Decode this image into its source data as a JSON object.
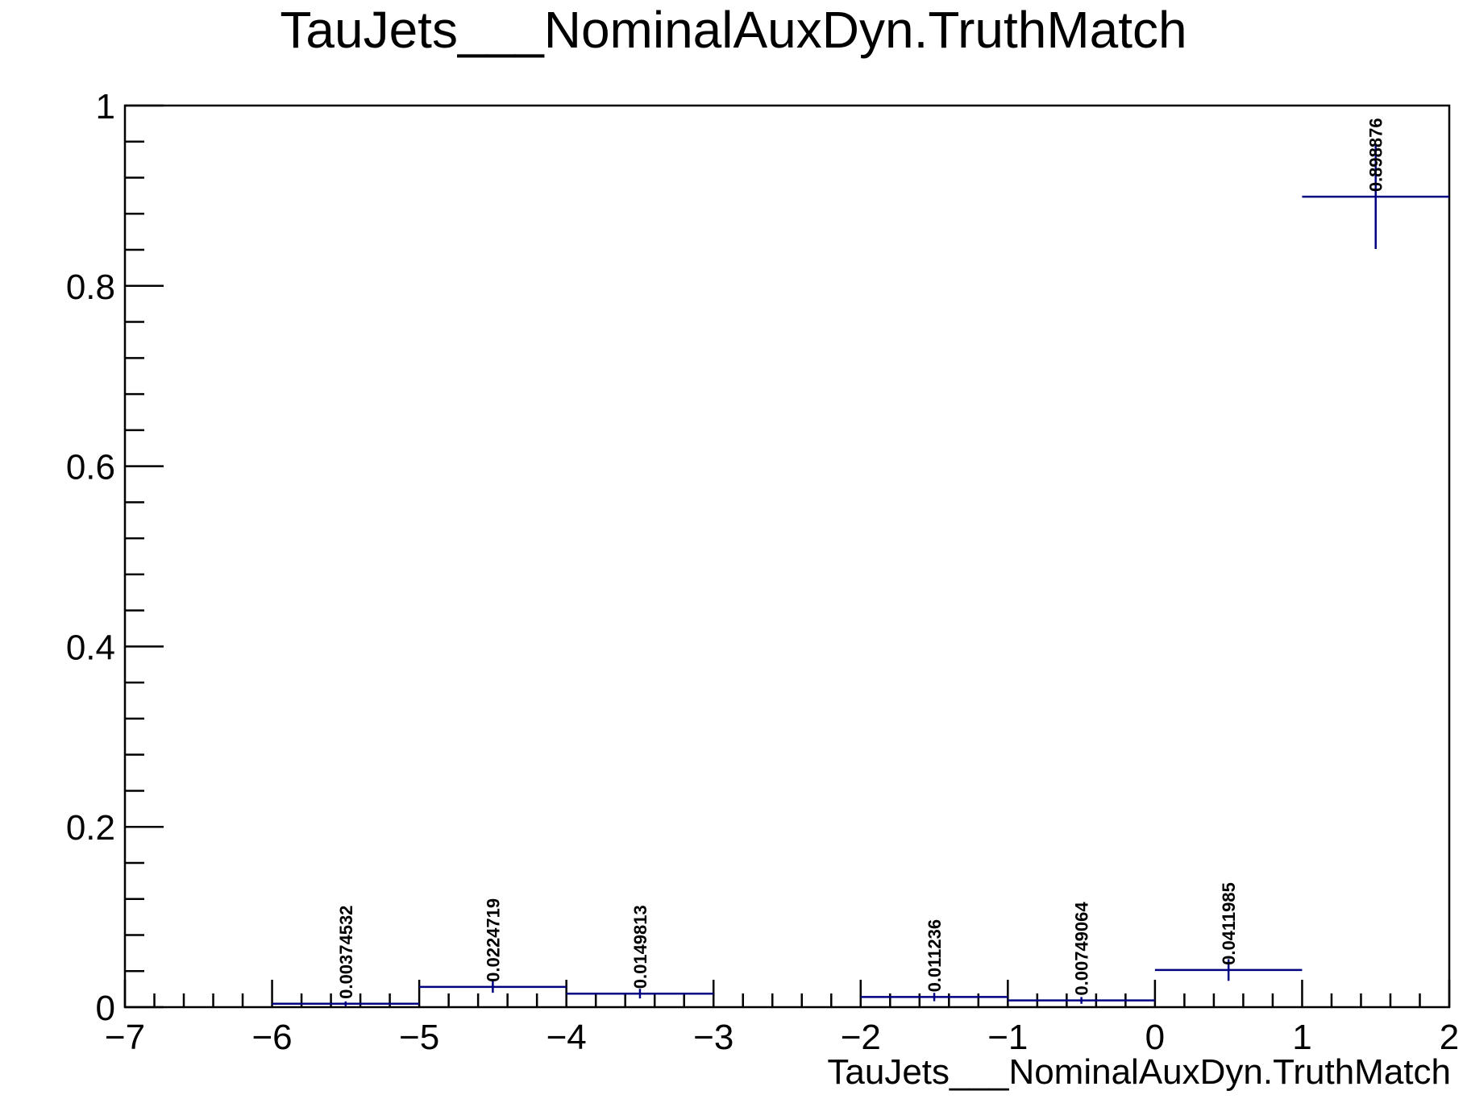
{
  "chart_data": {
    "type": "bar",
    "title": "TauJets___NominalAuxDyn.TruthMatch",
    "xlabel": "TauJets___NominalAuxDyn.TruthMatch",
    "ylabel": "",
    "xlim": [
      -7,
      2
    ],
    "ylim": [
      0,
      1
    ],
    "grid": false,
    "legend": false,
    "x_ticks": [
      -7,
      -6,
      -5,
      -4,
      -3,
      -2,
      -1,
      0,
      1,
      2
    ],
    "x_tick_labels": [
      "−7",
      "−6",
      "−5",
      "−4",
      "−3",
      "−2",
      "−1",
      "0",
      "1",
      "2"
    ],
    "y_ticks": [
      0,
      0.2,
      0.4,
      0.6,
      0.8,
      1
    ],
    "y_tick_labels": [
      "0",
      "0.2",
      "0.4",
      "0.6",
      "0.8",
      "1"
    ],
    "bins": [
      {
        "low": -6,
        "high": -5,
        "value": 0.00374532,
        "error": 0.0026,
        "label": "0.00374532"
      },
      {
        "low": -5,
        "high": -4,
        "value": 0.0224719,
        "error": 0.0065,
        "label": "0.0224719"
      },
      {
        "low": -4,
        "high": -3,
        "value": 0.0149813,
        "error": 0.0053,
        "label": "0.0149813"
      },
      {
        "low": -2,
        "high": -1,
        "value": 0.011236,
        "error": 0.0046,
        "label": "0.011236"
      },
      {
        "low": -1,
        "high": 0,
        "value": 0.00749064,
        "error": 0.0037,
        "label": "0.00749064"
      },
      {
        "low": 0,
        "high": 1,
        "value": 0.0411985,
        "error": 0.012,
        "label": "0.0411985"
      },
      {
        "low": 1,
        "high": 2,
        "value": 0.898876,
        "error": 0.058,
        "label": "0.898876"
      }
    ],
    "colors": {
      "series": "#000080",
      "axis": "#000000"
    }
  }
}
